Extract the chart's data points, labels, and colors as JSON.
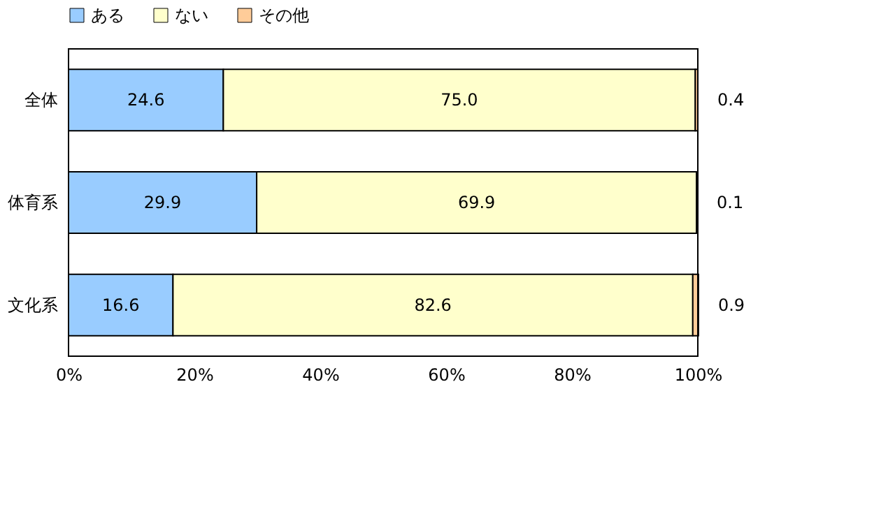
{
  "chart_data": {
    "type": "bar",
    "orientation": "horizontal",
    "stacked": true,
    "categories": [
      "全体",
      "体育系",
      "文化系"
    ],
    "series": [
      {
        "name": "ある",
        "color": "#99ccff",
        "values": [
          24.6,
          29.9,
          16.6
        ],
        "value_labels": [
          "24.6",
          "29.9",
          "16.6"
        ]
      },
      {
        "name": "ない",
        "color": "#ffffcc",
        "values": [
          75.0,
          69.9,
          82.6
        ],
        "value_labels": [
          "75.0",
          "69.9",
          "82.6"
        ]
      },
      {
        "name": "その他",
        "color": "#ffcc99",
        "values": [
          0.4,
          0.1,
          0.9
        ],
        "value_labels": [
          "0.4",
          "0.1",
          "0.9"
        ]
      }
    ],
    "xlim": [
      0,
      100
    ],
    "xticks": [
      {
        "value": 0,
        "label": "0%"
      },
      {
        "value": 20,
        "label": "20%"
      },
      {
        "value": 40,
        "label": "40%"
      },
      {
        "value": 60,
        "label": "60%"
      },
      {
        "value": 80,
        "label": "80%"
      },
      {
        "value": 100,
        "label": "100%"
      }
    ],
    "legend": "top",
    "grid": false
  }
}
